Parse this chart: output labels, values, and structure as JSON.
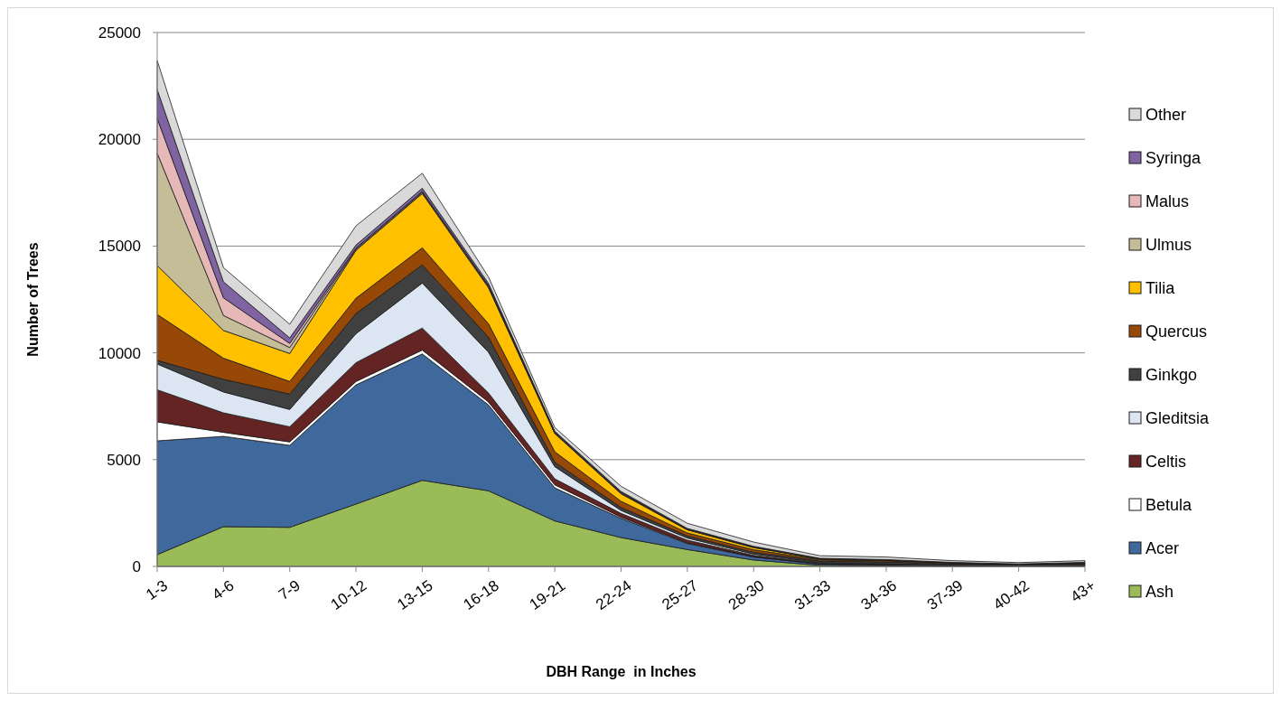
{
  "chart_data": {
    "type": "area",
    "stacked": true,
    "xlabel": "DBH Range  in Inches",
    "ylabel": "Number of Trees",
    "categories": [
      "1-3",
      "4-6",
      "7-9",
      "10-12",
      "13-15",
      "16-18",
      "19-21",
      "22-24",
      "25-27",
      "28-30",
      "31-33",
      "34-36",
      "37-39",
      "40-42",
      "43+"
    ],
    "ylim": [
      0,
      25000
    ],
    "yticks": [
      0,
      5000,
      10000,
      15000,
      20000,
      25000
    ],
    "grid": "y",
    "legend": "right",
    "series": [
      {
        "name": "Ash",
        "color": "#9bbb59",
        "values": [
          550,
          1860,
          1830,
          2920,
          4030,
          3540,
          2130,
          1350,
          790,
          300,
          50,
          20,
          10,
          10,
          10
        ]
      },
      {
        "name": "Acer",
        "color": "#3f689d",
        "values": [
          5330,
          4230,
          3840,
          5580,
          5920,
          4020,
          1550,
          900,
          280,
          140,
          60,
          40,
          20,
          10,
          20
        ]
      },
      {
        "name": "Betula",
        "color": "#ffffff",
        "values": [
          890,
          190,
          160,
          160,
          180,
          140,
          140,
          60,
          30,
          20,
          10,
          10,
          0,
          0,
          0
        ]
      },
      {
        "name": "Celtis",
        "color": "#632423",
        "values": [
          1500,
          910,
          710,
          880,
          1030,
          420,
          280,
          170,
          130,
          60,
          30,
          20,
          10,
          10,
          10
        ]
      },
      {
        "name": "Gleditsia",
        "color": "#dce6f2",
        "values": [
          1210,
          980,
          810,
          1360,
          2110,
          1910,
          570,
          140,
          100,
          60,
          30,
          30,
          20,
          10,
          20
        ]
      },
      {
        "name": "Ginkgo",
        "color": "#404040",
        "values": [
          170,
          590,
          720,
          940,
          850,
          700,
          210,
          140,
          100,
          80,
          80,
          90,
          60,
          40,
          60
        ]
      },
      {
        "name": "Quercus",
        "color": "#974806",
        "values": [
          2150,
          990,
          590,
          720,
          800,
          630,
          490,
          290,
          140,
          120,
          60,
          60,
          40,
          30,
          40
        ]
      },
      {
        "name": "Tilia",
        "color": "#ffc000",
        "values": [
          2290,
          1300,
          1310,
          2240,
          2540,
          1690,
          850,
          350,
          140,
          100,
          30,
          20,
          10,
          10,
          10
        ]
      },
      {
        "name": "Ulmus",
        "color": "#c4bd97",
        "values": [
          5260,
          700,
          280,
          50,
          50,
          50,
          30,
          30,
          20,
          20,
          10,
          10,
          10,
          0,
          10
        ]
      },
      {
        "name": "Malus",
        "color": "#e6b9b8",
        "values": [
          1630,
          830,
          190,
          50,
          50,
          50,
          30,
          30,
          20,
          20,
          10,
          10,
          0,
          0,
          0
        ]
      },
      {
        "name": "Syringa",
        "color": "#8064a2",
        "values": [
          1350,
          750,
          260,
          150,
          150,
          100,
          50,
          50,
          30,
          20,
          10,
          10,
          10,
          0,
          10
        ]
      },
      {
        "name": "Other",
        "color": "#d9d9d9",
        "values": [
          1360,
          660,
          640,
          900,
          700,
          300,
          170,
          240,
          240,
          200,
          120,
          120,
          80,
          60,
          80
        ]
      }
    ]
  }
}
